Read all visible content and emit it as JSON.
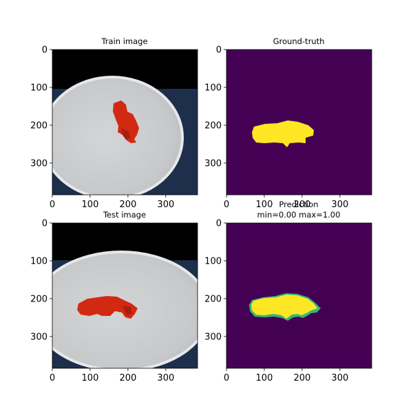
{
  "figure": {
    "background": "#ffffff"
  },
  "chart_data": [
    {
      "type": "image",
      "id": "train-image",
      "title": "Train image",
      "subtitle": "",
      "xlim": [
        0,
        384
      ],
      "ylim": [
        384,
        0
      ],
      "xticks": [
        0,
        100,
        200,
        300
      ],
      "yticks": [
        0,
        100,
        200,
        300
      ],
      "content": "photo",
      "object_color": "#d22a12"
    },
    {
      "type": "heatmap",
      "id": "ground-truth",
      "title": "Ground-truth",
      "subtitle": "",
      "xlim": [
        0,
        384
      ],
      "ylim": [
        384,
        0
      ],
      "xticks": [
        0,
        100,
        200,
        300
      ],
      "yticks": [
        0,
        100,
        200,
        300
      ],
      "colormap": "viridis",
      "background_color": "#440154",
      "mask_color": "#fde725"
    },
    {
      "type": "image",
      "id": "test-image",
      "title": "Test image",
      "subtitle": "",
      "xlim": [
        0,
        384
      ],
      "ylim": [
        384,
        0
      ],
      "xticks": [
        0,
        100,
        200,
        300
      ],
      "yticks": [
        0,
        100,
        200,
        300
      ],
      "content": "photo",
      "object_color": "#d22a12"
    },
    {
      "type": "heatmap",
      "id": "prediction",
      "title": "Prediction",
      "subtitle": "min=0.00 max=1.00",
      "min": 0.0,
      "max": 1.0,
      "xlim": [
        0,
        384
      ],
      "ylim": [
        384,
        0
      ],
      "xticks": [
        0,
        100,
        200,
        300
      ],
      "yticks": [
        0,
        100,
        200,
        300
      ],
      "colormap": "viridis",
      "background_color": "#440154",
      "mask_color": "#fde725",
      "edge_color": "#35b779"
    }
  ]
}
